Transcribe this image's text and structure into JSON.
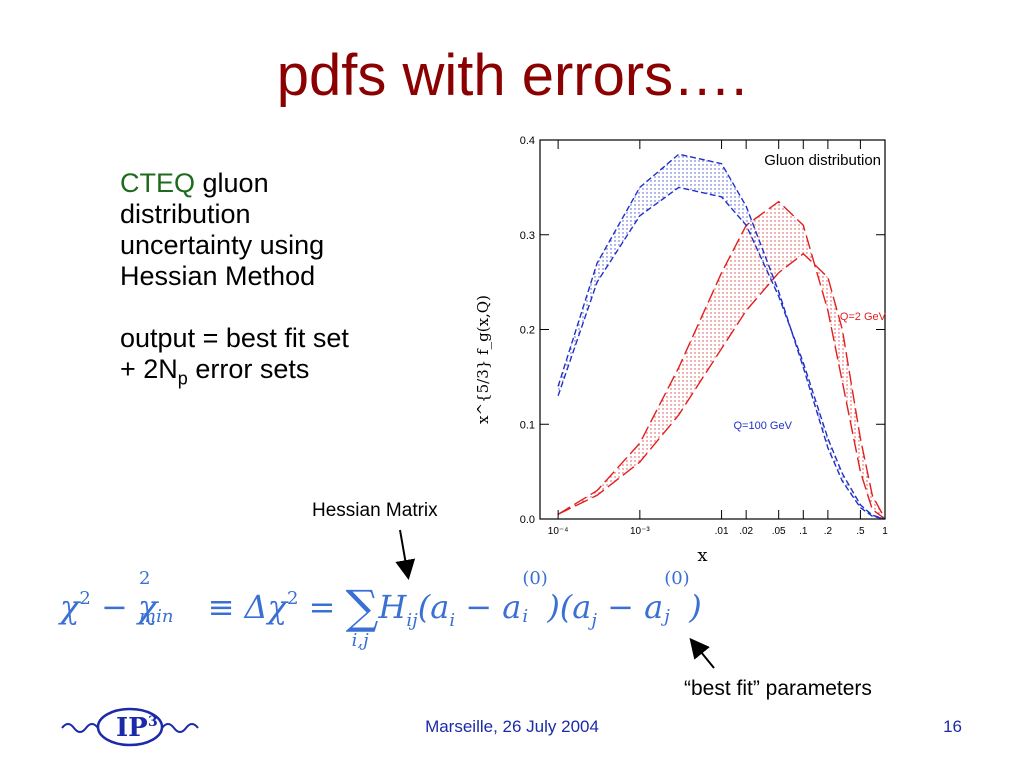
{
  "slide": {
    "title": "pdfs with errors….",
    "desc_accent": "CTEQ",
    "desc_line1_rest": " gluon",
    "desc_line2": "distribution",
    "desc_line3": "uncertainty using",
    "desc_line4": "Hessian Method",
    "desc_line5": "output = best fit set",
    "desc_line6_a": "+ 2N",
    "desc_line6_sub": "p",
    "desc_line6_b": " error sets",
    "hessian_label": "Hessian Matrix",
    "bestfit_label": "“best fit” parameters",
    "footer": "Marseille, 26 July 2004",
    "page_number": "16",
    "logo_text": "IP",
    "logo_sup": "3"
  },
  "formula": {
    "chi": "χ",
    "two": "2",
    "minus": " − ",
    "min_sub": "min",
    "equiv": " ≡ Δ",
    "eq": " = ",
    "sum": "∑",
    "sum_sub": "i,j",
    "h": "H",
    "ij": "ij",
    "open_ai": "(a",
    "i": "i",
    "minus_a": " − a",
    "zero": "(0)",
    "close_open": ")(a",
    "j": "j",
    "close": ")"
  },
  "chart_data": {
    "type": "line",
    "title": "Gluon distribution",
    "xlabel": "x",
    "ylabel": "x^{5/3} f_g(x,Q)",
    "x_scale": "log",
    "xlim": [
      6e-05,
      1
    ],
    "ylim": [
      0,
      0.4
    ],
    "yticks": [
      0.0,
      0.1,
      0.2,
      0.3,
      0.4
    ],
    "ytick_labels": [
      "0.0",
      "0.1",
      "0.2",
      "0.3",
      "0.4"
    ],
    "xticks": [
      0.0001,
      0.001,
      0.01,
      0.02,
      0.05,
      0.1,
      0.2,
      0.5,
      1
    ],
    "xtick_labels": [
      "10⁻⁴",
      "10⁻³",
      ".01",
      ".02",
      ".05",
      ".1",
      ".2",
      ".5",
      "1"
    ],
    "grid": false,
    "annotations": [
      {
        "text": "Q=2 GeV",
        "x": 0.28,
        "y": 0.21,
        "color": "#e02020"
      },
      {
        "text": "Q=100 GeV",
        "x": 0.014,
        "y": 0.095,
        "color": "#2030c8"
      }
    ],
    "series": [
      {
        "group": "Q=2 GeV",
        "bound": "upper",
        "color": "#e02020",
        "x": [
          0.0001,
          0.0003,
          0.001,
          0.003,
          0.01,
          0.02,
          0.05,
          0.1,
          0.2,
          0.3,
          0.5,
          0.7,
          1.0
        ],
        "y": [
          0.005,
          0.03,
          0.08,
          0.16,
          0.26,
          0.31,
          0.335,
          0.31,
          0.22,
          0.145,
          0.05,
          0.01,
          0.0
        ]
      },
      {
        "group": "Q=2 GeV",
        "bound": "lower",
        "color": "#e02020",
        "x": [
          0.0001,
          0.0003,
          0.001,
          0.003,
          0.01,
          0.02,
          0.05,
          0.1,
          0.2,
          0.3,
          0.5,
          0.7,
          1.0
        ],
        "y": [
          0.005,
          0.025,
          0.06,
          0.11,
          0.18,
          0.22,
          0.26,
          0.28,
          0.255,
          0.2,
          0.085,
          0.025,
          0.0
        ]
      },
      {
        "group": "Q=100 GeV",
        "bound": "upper",
        "color": "#2030c8",
        "x": [
          0.0001,
          0.0003,
          0.001,
          0.003,
          0.01,
          0.02,
          0.05,
          0.1,
          0.2,
          0.3,
          0.5,
          0.7,
          1.0
        ],
        "y": [
          0.14,
          0.27,
          0.35,
          0.385,
          0.375,
          0.33,
          0.24,
          0.16,
          0.075,
          0.04,
          0.012,
          0.003,
          0.0
        ]
      },
      {
        "group": "Q=100 GeV",
        "bound": "lower",
        "color": "#2030c8",
        "x": [
          0.0001,
          0.0003,
          0.001,
          0.003,
          0.01,
          0.02,
          0.05,
          0.1,
          0.2,
          0.3,
          0.5,
          0.7,
          1.0
        ],
        "y": [
          0.13,
          0.25,
          0.32,
          0.35,
          0.34,
          0.31,
          0.235,
          0.165,
          0.085,
          0.048,
          0.015,
          0.004,
          0.0
        ]
      }
    ]
  }
}
